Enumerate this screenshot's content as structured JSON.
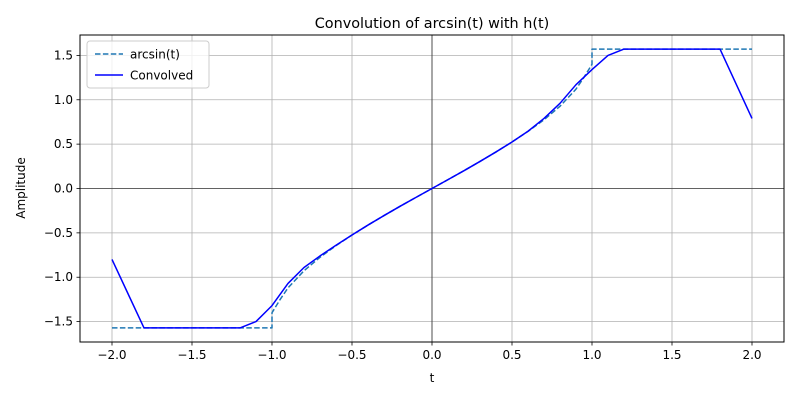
{
  "chart_data": {
    "type": "line",
    "title": "Convolution of arcsin(t) with h(t)",
    "xlabel": "t",
    "ylabel": "Amplitude",
    "xlim": [
      -2.2,
      2.2
    ],
    "ylim": [
      -1.73,
      1.73
    ],
    "x_ticks": [
      -2.0,
      -1.5,
      -1.0,
      -0.5,
      0.0,
      0.5,
      1.0,
      1.5,
      2.0
    ],
    "x_tick_labels": [
      "−2.0",
      "−1.5",
      "−1.0",
      "−0.5",
      "0.0",
      "0.5",
      "1.0",
      "1.5",
      "2.0"
    ],
    "y_ticks": [
      -1.5,
      -1.0,
      -0.5,
      0.0,
      0.5,
      1.0,
      1.5
    ],
    "y_tick_labels": [
      "−1.5",
      "−1.0",
      "−0.5",
      "0.0",
      "0.5",
      "1.0",
      "1.5"
    ],
    "grid": true,
    "zero_lines": true,
    "legend_position": "top-left",
    "series": [
      {
        "name": "arcsin(t)",
        "color": "#1f77b4",
        "style": "dashed",
        "x": [
          -2.0,
          -1.0,
          -1.0,
          -0.95,
          -0.9,
          -0.8,
          -0.7,
          -0.6,
          -0.5,
          -0.4,
          -0.3,
          -0.2,
          -0.1,
          0.0,
          0.1,
          0.2,
          0.3,
          0.4,
          0.5,
          0.6,
          0.7,
          0.8,
          0.9,
          0.95,
          1.0,
          1.0,
          2.0
        ],
        "y": [
          -1.571,
          -1.571,
          -1.4,
          -1.253,
          -1.12,
          -0.927,
          -0.775,
          -0.644,
          -0.524,
          -0.412,
          -0.305,
          -0.201,
          -0.1,
          0.0,
          0.1,
          0.201,
          0.305,
          0.412,
          0.524,
          0.644,
          0.775,
          0.927,
          1.12,
          1.253,
          1.4,
          1.571,
          1.571
        ]
      },
      {
        "name": "Convolved",
        "color": "#0000ff",
        "style": "solid",
        "x": [
          -2.0,
          -1.8,
          -1.2,
          -1.1,
          -1.0,
          -0.9,
          -0.8,
          -0.7,
          -0.6,
          -0.5,
          -0.4,
          -0.3,
          -0.2,
          -0.1,
          0.0,
          0.1,
          0.2,
          0.3,
          0.4,
          0.5,
          0.6,
          0.7,
          0.8,
          0.9,
          1.0,
          1.1,
          1.2,
          1.8,
          2.0
        ],
        "y": [
          -0.8,
          -1.571,
          -1.571,
          -1.5,
          -1.32,
          -1.07,
          -0.89,
          -0.76,
          -0.64,
          -0.524,
          -0.412,
          -0.305,
          -0.201,
          -0.1,
          0.0,
          0.1,
          0.201,
          0.305,
          0.412,
          0.524,
          0.645,
          0.79,
          0.96,
          1.17,
          1.34,
          1.5,
          1.571,
          1.571,
          0.79
        ]
      }
    ]
  }
}
